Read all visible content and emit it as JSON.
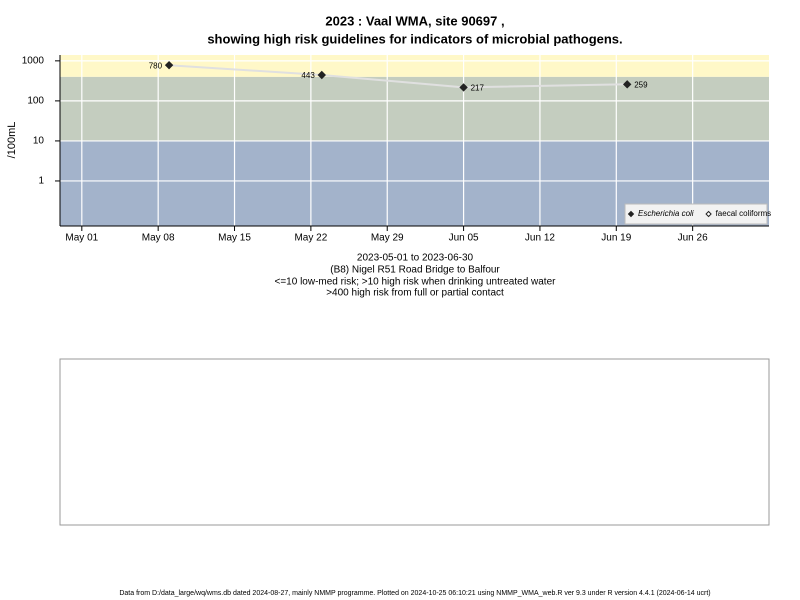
{
  "chart_data": {
    "type": "line",
    "title": [
      "2023 : Vaal WMA, site 90697 ,",
      "showing high risk guidelines for indicators of microbial pathogens."
    ],
    "ylabel": "/100mL",
    "log_y": true,
    "grid": true,
    "ylim": [
      0.075,
      1400
    ],
    "yticks": [
      1,
      10,
      100,
      1000
    ],
    "thresholds": [
      10,
      400
    ],
    "band_colors": [
      "#a3b3cb",
      "#c4cdbf",
      "#fff8c8"
    ],
    "xlim": [
      "2023-04-29",
      "2023-07-03"
    ],
    "xticks": [
      {
        "value": "2023-05-01",
        "label": "May 01"
      },
      {
        "value": "2023-05-08",
        "label": "May 08"
      },
      {
        "value": "2023-05-15",
        "label": "May 15"
      },
      {
        "value": "2023-05-22",
        "label": "May 22"
      },
      {
        "value": "2023-05-29",
        "label": "May 29"
      },
      {
        "value": "2023-06-05",
        "label": "Jun 05"
      },
      {
        "value": "2023-06-12",
        "label": "Jun 12"
      },
      {
        "value": "2023-06-19",
        "label": "Jun 19"
      },
      {
        "value": "2023-06-26",
        "label": "Jun 26"
      }
    ],
    "x": [
      "2023-05-09",
      "2023-05-23",
      "2023-06-05",
      "2023-06-20"
    ],
    "series": [
      {
        "name": "Escherichia coli",
        "color": "#222222",
        "line_color": "#e0e0e0",
        "values": [
          780,
          443,
          217,
          259
        ]
      },
      {
        "name": "faecal coliforms",
        "color": "#222222",
        "line_color": "#e0e0e0",
        "values": [
          null,
          null,
          null,
          null
        ]
      }
    ],
    "legend": "bottom-right",
    "notes": [
      "2023-05-01 to 2023-06-30",
      "(B8) Nigel R51 Road Bridge to Balfour",
      "<=10 low-med risk; >10 high risk when drinking untreated water",
      ">400 high risk from full or partial contact"
    ],
    "footer": "Data from D:/data_large/wq/wms.db dated 2024-08-27, mainly NMMP programme. Plotted on 2024-10-25 06:10:21 using NMMP_WMA_web.R ver 9.3 under R version 4.4.1 (2024-06-14 ucrt)"
  }
}
